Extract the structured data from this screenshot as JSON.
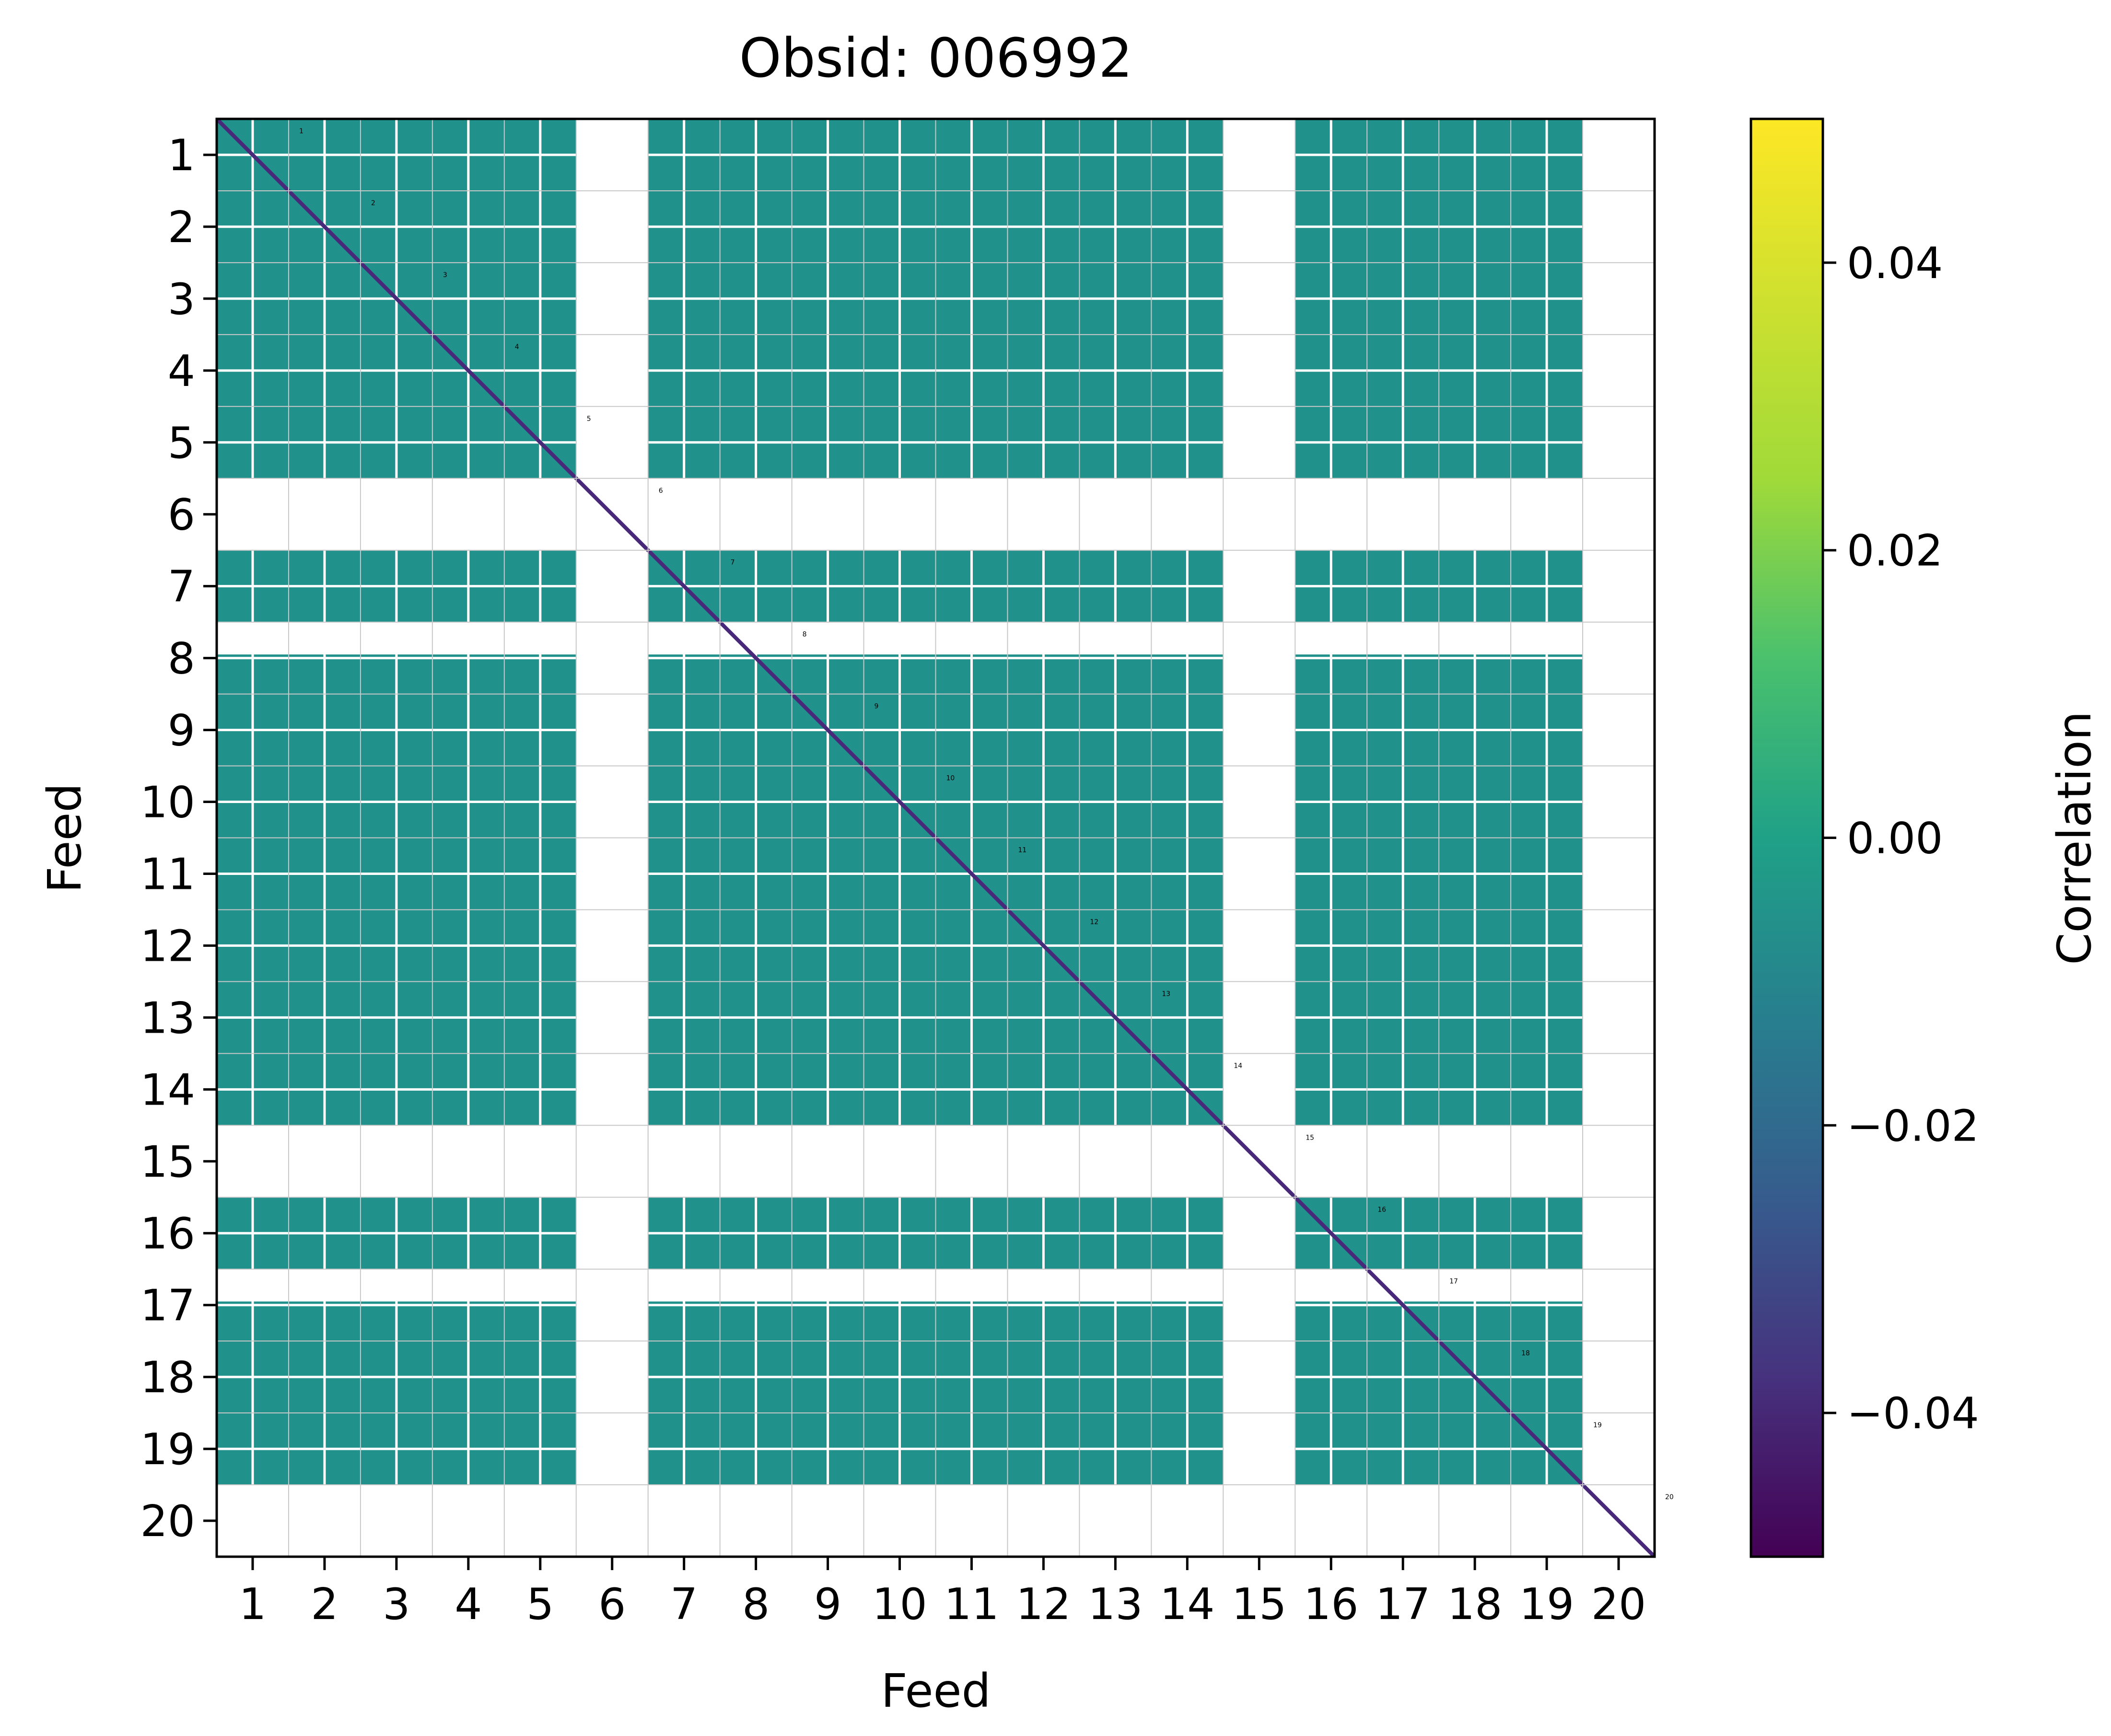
{
  "chart_data": {
    "type": "heatmap",
    "title": "Obsid: 006992",
    "xlabel": "Feed",
    "ylabel": "Feed",
    "x_ticks": [
      "1",
      "2",
      "3",
      "4",
      "5",
      "6",
      "7",
      "8",
      "9",
      "10",
      "11",
      "12",
      "13",
      "14",
      "15",
      "16",
      "17",
      "18",
      "19",
      "20"
    ],
    "y_ticks": [
      "1",
      "2",
      "3",
      "4",
      "5",
      "6",
      "7",
      "8",
      "9",
      "10",
      "11",
      "12",
      "13",
      "14",
      "15",
      "16",
      "17",
      "18",
      "19",
      "20"
    ],
    "feeds": 20,
    "masked_feeds": [
      "6",
      "15",
      "20"
    ],
    "partially_masked_rows": [
      "8",
      "17"
    ],
    "dominant_value": 0.0,
    "diagonal_value": -0.05,
    "diagonal_labels": [
      "1",
      "2",
      "3",
      "4",
      "5",
      "6",
      "7",
      "8",
      "9",
      "10",
      "11",
      "12",
      "13",
      "14",
      "15",
      "16",
      "17",
      "18",
      "19",
      "20"
    ],
    "colorbar": {
      "label": "Correlation",
      "colormap": "viridis",
      "vmin": -0.05,
      "vmax": 0.05,
      "ticks": [
        -0.04,
        -0.02,
        0.0,
        0.02,
        0.04
      ],
      "tick_labels": [
        "−0.04",
        "−0.02",
        "0.00",
        "0.02",
        "0.04"
      ]
    },
    "grid": true,
    "colors": {
      "cell": "#21918c",
      "diagonal": "#482878",
      "masked": "#ffffff",
      "grid": "#c8c8c8"
    }
  }
}
